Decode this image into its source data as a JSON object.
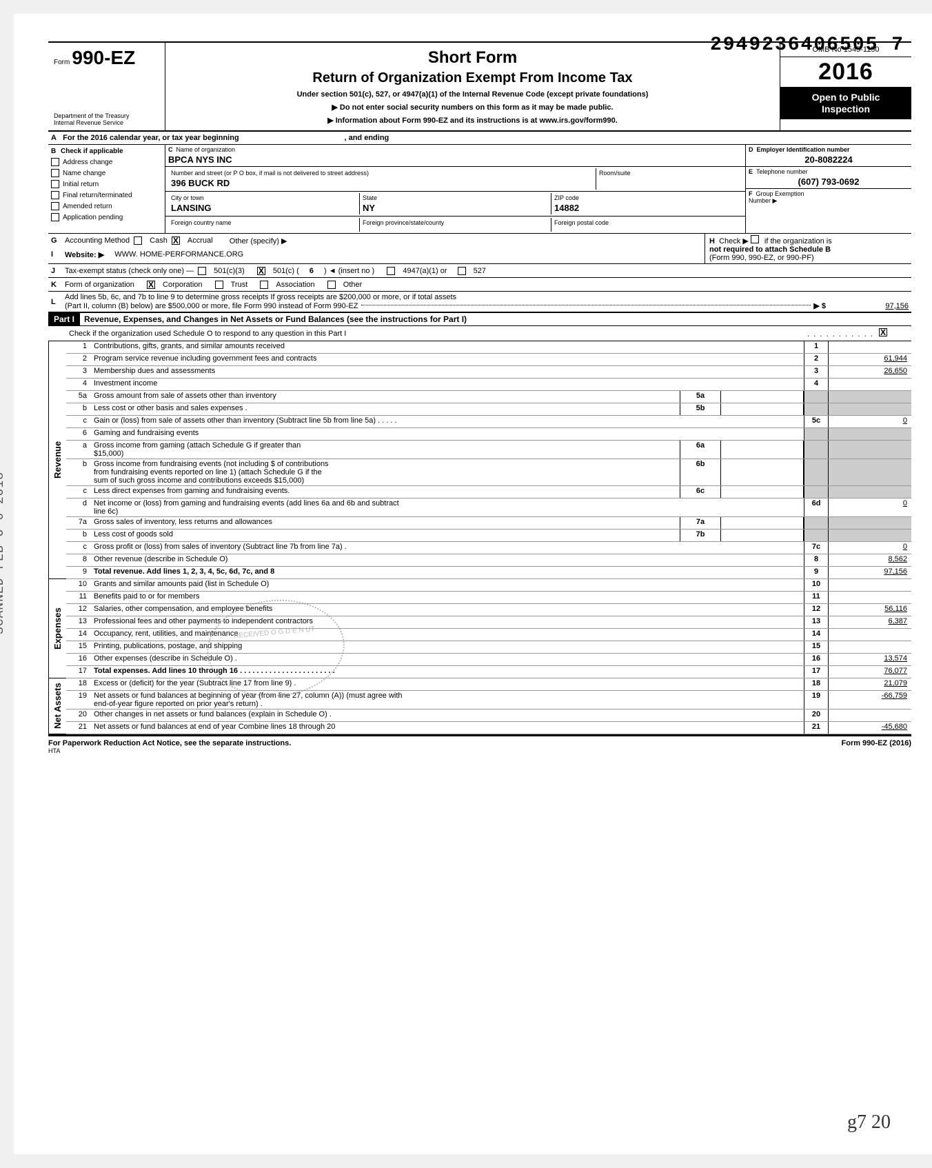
{
  "stamp_id": "2949236406505 7",
  "vertical_stamp": "SCANNED FEB 0 6 2018",
  "hand_note": "g7 20",
  "header": {
    "form_prefix": "Form",
    "form_number": "990-EZ",
    "dept1": "Department of the Treasury",
    "dept2": "Internal Revenue Service",
    "title_short": "Short Form",
    "title_main": "Return of Organization Exempt From Income Tax",
    "line1": "Under section 501(c), 527, or 4947(a)(1) of the Internal Revenue Code (except private foundations)",
    "line2": "Do not enter social security numbers on this form as it may be made public.",
    "line3": "Information about Form 990-EZ and its instructions is at www.irs.gov/form990.",
    "omb": "OMB No 1545-1150",
    "year": "2016",
    "open1": "Open to Public",
    "open2": "Inspection"
  },
  "row_a": {
    "label": "A",
    "text_left": "For the 2016 calendar year, or tax year beginning",
    "text_right": ", and ending"
  },
  "section_b": {
    "b_label": "B",
    "check_label": "Check if applicable",
    "checks": [
      {
        "label": "Address change"
      },
      {
        "label": "Name change"
      },
      {
        "label": "Initial return"
      },
      {
        "label": "Final return/terminated"
      },
      {
        "label": "Amended return"
      },
      {
        "label": "Application pending"
      }
    ],
    "c_label": "C",
    "name_lbl": "Name of organization",
    "name_val": "BPCA NYS INC",
    "street_lbl": "Number and street (or P O  box, if mail is not delivered to street address)",
    "room_lbl": "Room/suite",
    "street_val": "396 BUCK RD",
    "city_lbl": "City or town",
    "city_val": "LANSING",
    "state_lbl": "State",
    "state_val": "NY",
    "zip_lbl": "ZIP code",
    "zip_val": "14882",
    "fc_lbl": "Foreign country name",
    "fps_lbl": "Foreign province/state/county",
    "fpc_lbl": "Foreign postal code",
    "d_label": "D",
    "ein_lbl": "Employer Identification number",
    "ein_val": "20-8082224",
    "e_label": "E",
    "tel_lbl": "Telephone number",
    "tel_val": "(607) 793-0692",
    "f_label": "F",
    "grp_lbl": "Group Exemption",
    "num_lbl": "Number ▶"
  },
  "lines": {
    "g": {
      "l": "G",
      "t": "Accounting Method",
      "cash": "Cash",
      "accrual": "Accrual",
      "other": "Other (specify) ▶"
    },
    "h": {
      "l": "H",
      "t1": "Check ▶",
      "t2": "if the organization is",
      "t3": "not required to attach Schedule B",
      "t4": "(Form 990, 990-EZ, or 990-PF)"
    },
    "i": {
      "l": "I",
      "t": "Website: ▶",
      "v": "WWW. HOME-PERFORMANCE.ORG"
    },
    "j": {
      "l": "J",
      "t": "Tax-exempt status (check only one) —",
      "o1": "501(c)(3)",
      "o2": "501(c) (",
      "o2v": "6",
      "o2s": ") ◄ (insert no )",
      "o3": "4947(a)(1) or",
      "o4": "527"
    },
    "k": {
      "l": "K",
      "t": "Form of organization",
      "o1": "Corporation",
      "o2": "Trust",
      "o3": "Association",
      "o4": "Other"
    },
    "l": {
      "l": "L",
      "t1": "Add lines 5b, 6c, and 7b to line 9 to determine gross receipts  If gross receipts are $200,000 or more, or if total assets",
      "t2": "(Part II, column (B) below) are $500,000 or more, file Form 990 instead of Form 990-EZ",
      "arrow": "▶ $",
      "v": "97,156"
    }
  },
  "part1": {
    "title": "Part I",
    "desc": "Revenue, Expenses, and Changes in Net Assets or Fund Balances (see the instructions for Part I)",
    "check_o": "Check if the organization used Schedule O to respond to any question in this Part I"
  },
  "rows": [
    {
      "n": "1",
      "d": "Contributions, gifts, grants, and similar amounts received",
      "c": "1",
      "a": ""
    },
    {
      "n": "2",
      "d": "Program service revenue including government fees and contracts",
      "c": "2",
      "a": "61,944"
    },
    {
      "n": "3",
      "d": "Membership dues and assessments",
      "c": "3",
      "a": "26,650"
    },
    {
      "n": "4",
      "d": "Investment income",
      "c": "4",
      "a": ""
    },
    {
      "n": "5a",
      "d": "Gross amount from sale of assets other than inventory",
      "mc": "5a",
      "mv": "",
      "shaded": true
    },
    {
      "n": "b",
      "d": "Less  cost or other basis and sales expenses .",
      "mc": "5b",
      "mv": "",
      "shaded": true
    },
    {
      "n": "c",
      "d": "Gain or (loss) from sale of assets other than inventory (Subtract line 5b from line 5a) .   .   .   .   .",
      "c": "5c",
      "a": "0"
    },
    {
      "n": "6",
      "d": "Gaming and fundraising events",
      "shaded": true,
      "noval": true
    },
    {
      "n": "a",
      "d": "Gross income from gaming (attach Schedule G if greater than",
      "d2": "$15,000)",
      "mc": "6a",
      "mv": "",
      "shaded": true
    },
    {
      "n": "b",
      "d": "Gross income from fundraising events (not including     $                         of contributions",
      "d2": "from fundraising events reported on line 1) (attach Schedule G if the",
      "d3": "sum of such gross income and contributions exceeds $15,000)",
      "mc": "6b",
      "mv": "",
      "shaded": true
    },
    {
      "n": "c",
      "d": "Less  direct expenses from gaming and fundraising events.",
      "mc": "6c",
      "mv": "",
      "shaded": true
    },
    {
      "n": "d",
      "d": "Net income or (loss) from gaming and fundraising events (add lines 6a and 6b and subtract",
      "d2": "line 6c)",
      "c": "6d",
      "a": "0"
    },
    {
      "n": "7a",
      "d": "Gross sales of inventory, less returns and allowances",
      "mc": "7a",
      "mv": "",
      "shaded": true
    },
    {
      "n": "b",
      "d": "Less  cost of goods sold",
      "mc": "7b",
      "mv": "",
      "shaded": true
    },
    {
      "n": "c",
      "d": "Gross profit or (loss) from sales of inventory (Subtract line 7b from line 7a) .",
      "c": "7c",
      "a": "0"
    },
    {
      "n": "8",
      "d": "Other revenue (describe in Schedule O)",
      "c": "8",
      "a": "8,562"
    },
    {
      "n": "9",
      "d": "Total revenue. Add lines 1, 2, 3, 4, 5c, 6d, 7c, and 8",
      "c": "9",
      "a": "97,156",
      "bold": true,
      "arrow": true
    }
  ],
  "rows_exp": [
    {
      "n": "10",
      "d": "Grants and similar amounts paid (list in Schedule O)",
      "c": "10",
      "a": ""
    },
    {
      "n": "11",
      "d": "Benefits paid to or for members",
      "c": "11",
      "a": ""
    },
    {
      "n": "12",
      "d": "Salaries, other compensation, and employee benefits",
      "c": "12",
      "a": "56,116"
    },
    {
      "n": "13",
      "d": "Professional fees and other payments to independent contractors",
      "c": "13",
      "a": "6,387"
    },
    {
      "n": "14",
      "d": "Occupancy, rent, utilities, and maintenance",
      "c": "14",
      "a": ""
    },
    {
      "n": "15",
      "d": "Printing, publications, postage, and shipping",
      "c": "15",
      "a": ""
    },
    {
      "n": "16",
      "d": "Other expenses (describe in Schedule O) .",
      "c": "16",
      "a": "13,574"
    },
    {
      "n": "17",
      "d": "Total expenses. Add lines 10 through 16 .   .   .   .   .   .   .   .   .   .   .   .   .   .   .   .   .   .   .   .   .   .   .",
      "c": "17",
      "a": "76,077",
      "bold": true,
      "arrow": true
    }
  ],
  "rows_net": [
    {
      "n": "18",
      "d": "Excess or (deficit) for the year (Subtract line 17 from line 9) .",
      "c": "18",
      "a": "21,079"
    },
    {
      "n": "19",
      "d": "Net assets or fund balances at beginning of year (from line 27, column (A)) (must agree with",
      "d2": "end-of-year figure reported on prior year's return) .",
      "c": "19",
      "a": "-66,759"
    },
    {
      "n": "20",
      "d": "Other changes in net assets or fund balances (explain in Schedule O) .",
      "c": "20",
      "a": ""
    },
    {
      "n": "21",
      "d": "Net assets or fund balances at end of year  Combine lines 18 through 20",
      "c": "21",
      "a": "-45,680",
      "arrow": true
    }
  ],
  "cats": {
    "revenue": "Revenue",
    "expenses": "Expenses",
    "netassets": "Net Assets"
  },
  "footer": {
    "left": "For Paperwork Reduction Act Notice, see the separate instructions.",
    "hta": "HTA",
    "right": "Form 990-EZ (2016)"
  },
  "received": "RECEIVED  O G D E N  UT"
}
